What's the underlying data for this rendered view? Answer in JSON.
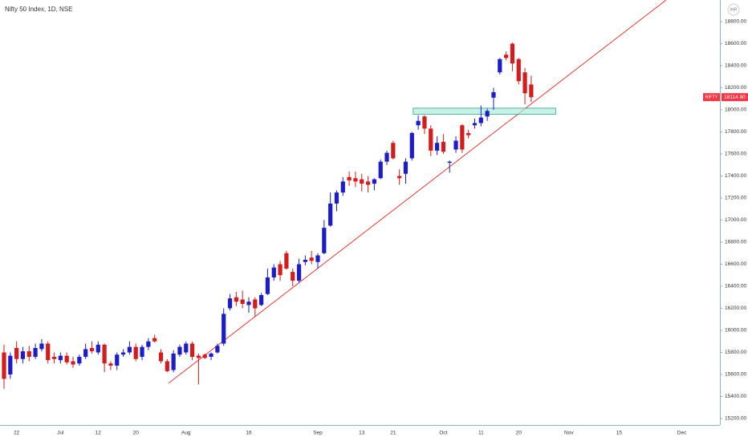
{
  "chart_data": {
    "type": "candlestick",
    "title": "Nifty 50 Index, 1D, NSE",
    "currency": "INR",
    "up_color": "#1c1cc8",
    "down_color": "#d41c1c",
    "categories": [
      null,
      null,
      "22",
      null,
      null,
      null,
      null,
      null,
      null,
      "Jul",
      null,
      null,
      null,
      null,
      null,
      "12",
      null,
      null,
      null,
      null,
      null,
      "20",
      null,
      null,
      null,
      null,
      null,
      null,
      null,
      "Aug",
      null,
      null,
      null,
      null,
      null,
      null,
      null,
      null,
      null,
      "16",
      null,
      null,
      null,
      null,
      null,
      null,
      null,
      null,
      null,
      null,
      "Sep",
      null,
      null,
      null,
      null,
      null,
      null,
      "13",
      null,
      null,
      null,
      null,
      "21",
      null,
      null,
      null,
      null,
      null,
      null,
      null,
      "Oct",
      null,
      null,
      null,
      null,
      null,
      "11",
      null,
      null,
      null,
      null,
      null,
      "20",
      null,
      null,
      null,
      null,
      null,
      null,
      null,
      "Nov",
      null,
      null,
      null,
      null,
      null,
      null,
      null,
      "15",
      null,
      null,
      null,
      null,
      null,
      null,
      null,
      null,
      null,
      "Dec",
      null,
      null,
      null,
      null,
      null
    ],
    "open": [
      15800,
      15600,
      15840,
      15740,
      15810,
      15760,
      15830,
      15880,
      15760,
      15730,
      15770,
      15720,
      15700,
      15760,
      15840,
      15800,
      15870,
      15700,
      15680,
      15780,
      15800,
      15850,
      15760,
      15850,
      15930,
      15800,
      15720,
      15640,
      15780,
      15800,
      15880,
      15770,
      15780,
      15760,
      15800,
      15880,
      16200,
      16300,
      16280,
      16230,
      16280,
      16230,
      16330,
      16480,
      16600,
      16700,
      16530,
      16450,
      16620,
      16660,
      16620,
      16700,
      16950,
      17150,
      17250,
      17390,
      17380,
      17370,
      17350,
      17330,
      17380,
      17530,
      17700,
      17400,
      17420,
      17560,
      17860,
      17940,
      17830,
      17630,
      17710,
      17520,
      17640,
      17860,
      17790,
      17860,
      17880,
      17940,
      18110,
      18340,
      18500,
      18600,
      18460,
      18340,
      18230,
      null,
      null,
      null,
      null,
      null,
      null,
      null,
      null,
      null,
      null,
      null,
      null,
      null,
      null,
      null,
      null,
      null,
      null,
      null,
      null,
      null,
      null,
      null,
      null,
      null,
      null,
      null,
      null,
      null
    ],
    "high": [
      15870,
      15800,
      15900,
      15850,
      15860,
      15880,
      15920,
      15900,
      15800,
      15800,
      15800,
      15760,
      15780,
      15880,
      15900,
      15900,
      15880,
      15720,
      15800,
      15830,
      15900,
      15880,
      15870,
      15930,
      15960,
      15830,
      15740,
      15820,
      15870,
      15900,
      15900,
      15790,
      15790,
      15800,
      15880,
      16200,
      16330,
      16350,
      16360,
      16300,
      16300,
      16340,
      16560,
      16600,
      16630,
      16720,
      16560,
      16650,
      16680,
      16720,
      16700,
      17000,
      17250,
      17270,
      17390,
      17440,
      17440,
      17420,
      17400,
      17380,
      17550,
      17630,
      17720,
      17460,
      17560,
      17800,
      17950,
      17950,
      17860,
      17760,
      17780,
      17540,
      17760,
      17870,
      17820,
      17920,
      18040,
      18010,
      18200,
      18470,
      18530,
      18610,
      18470,
      18380,
      18310,
      null,
      null,
      null,
      null,
      null,
      null,
      null,
      null,
      null,
      null,
      null,
      null,
      null,
      null,
      null,
      null,
      null,
      null,
      null,
      null,
      null,
      null,
      null,
      null,
      null,
      null,
      null,
      null,
      null
    ],
    "low": [
      15470,
      15560,
      15700,
      15700,
      15720,
      15740,
      15810,
      15700,
      15700,
      15700,
      15690,
      15660,
      15680,
      15740,
      15790,
      15780,
      15620,
      15640,
      15640,
      15760,
      15780,
      15720,
      15730,
      15820,
      15890,
      15700,
      15620,
      15620,
      15760,
      15780,
      15730,
      15510,
      15740,
      15730,
      15790,
      15860,
      16180,
      16220,
      16200,
      16160,
      16120,
      16220,
      16320,
      16450,
      16450,
      16550,
      16400,
      16430,
      16590,
      16600,
      16560,
      16690,
      16940,
      17080,
      17220,
      17310,
      17300,
      17260,
      17250,
      17270,
      17370,
      17500,
      17550,
      17320,
      17330,
      17540,
      17820,
      17780,
      17580,
      17590,
      17600,
      17430,
      17610,
      17610,
      17740,
      17830,
      17850,
      17900,
      18000,
      18320,
      18450,
      18350,
      18230,
      18050,
      18070,
      null,
      null,
      null,
      null,
      null,
      null,
      null,
      null,
      null,
      null,
      null,
      null,
      null,
      null,
      null,
      null,
      null,
      null,
      null,
      null,
      null,
      null,
      null,
      null,
      null,
      null,
      null,
      null,
      null
    ],
    "close": [
      15560,
      15770,
      15740,
      15810,
      15760,
      15840,
      15880,
      15730,
      15740,
      15770,
      15710,
      15690,
      15760,
      15830,
      15810,
      15870,
      15700,
      15680,
      15780,
      15800,
      15850,
      15740,
      15850,
      15900,
      15900,
      15720,
      15630,
      15790,
      15850,
      15880,
      15760,
      15750,
      15750,
      15790,
      15860,
      16150,
      16290,
      16260,
      16240,
      16260,
      16200,
      16320,
      16480,
      16570,
      16500,
      16560,
      16450,
      16600,
      16640,
      16630,
      16680,
      16930,
      17150,
      17250,
      17350,
      17360,
      17350,
      17330,
      17320,
      17370,
      17530,
      17610,
      17560,
      17380,
      17530,
      17790,
      17900,
      17830,
      17630,
      17700,
      17620,
      17530,
      17720,
      17640,
      17770,
      17880,
      17930,
      17990,
      18160,
      18460,
      18470,
      18420,
      18260,
      18150,
      18114.9,
      null,
      null,
      null,
      null,
      null,
      null,
      null,
      null,
      null,
      null,
      null,
      null,
      null,
      null,
      null,
      null,
      null,
      null,
      null,
      null,
      null,
      null,
      null,
      null,
      null,
      null,
      null,
      null,
      null
    ],
    "ylim": [
      15142,
      18996
    ],
    "yticks": [
      {
        "value": 15200,
        "label": "15200.00"
      },
      {
        "value": 15400,
        "label": "15400.00"
      },
      {
        "value": 15600,
        "label": "15600.00"
      },
      {
        "value": 15800,
        "label": "15800.00"
      },
      {
        "value": 16000,
        "label": "16000.00"
      },
      {
        "value": 16200,
        "label": "16200.00"
      },
      {
        "value": 16400,
        "label": "16400.00"
      },
      {
        "value": 16600,
        "label": "16600.00"
      },
      {
        "value": 16800,
        "label": "16800.00"
      },
      {
        "value": 17000,
        "label": "17000.00"
      },
      {
        "value": 17200,
        "label": "17200.00"
      },
      {
        "value": 17400,
        "label": "17400.00"
      },
      {
        "value": 17600,
        "label": "17600.00"
      },
      {
        "value": 17800,
        "label": "17800.00"
      },
      {
        "value": 18000,
        "label": "18000.00"
      },
      {
        "value": 18200,
        "label": "18200.00"
      },
      {
        "value": 18400,
        "label": "18400.00"
      },
      {
        "value": 18600,
        "label": "18600.00"
      },
      {
        "value": 18800,
        "label": "18800.00"
      }
    ],
    "grid": false,
    "trendline": {
      "color": "#e53935",
      "x": [
        26.2,
        105.5
      ],
      "y": [
        15520,
        18996
      ]
    },
    "zone": {
      "color": "#b2ead8",
      "border": "#26a69a",
      "x": [
        65.2,
        87.9
      ],
      "y": [
        17960,
        18015
      ]
    },
    "last_price": {
      "name": "NIFTY",
      "value": 18114.9,
      "label": "18114.90",
      "color": "#f23645"
    }
  }
}
